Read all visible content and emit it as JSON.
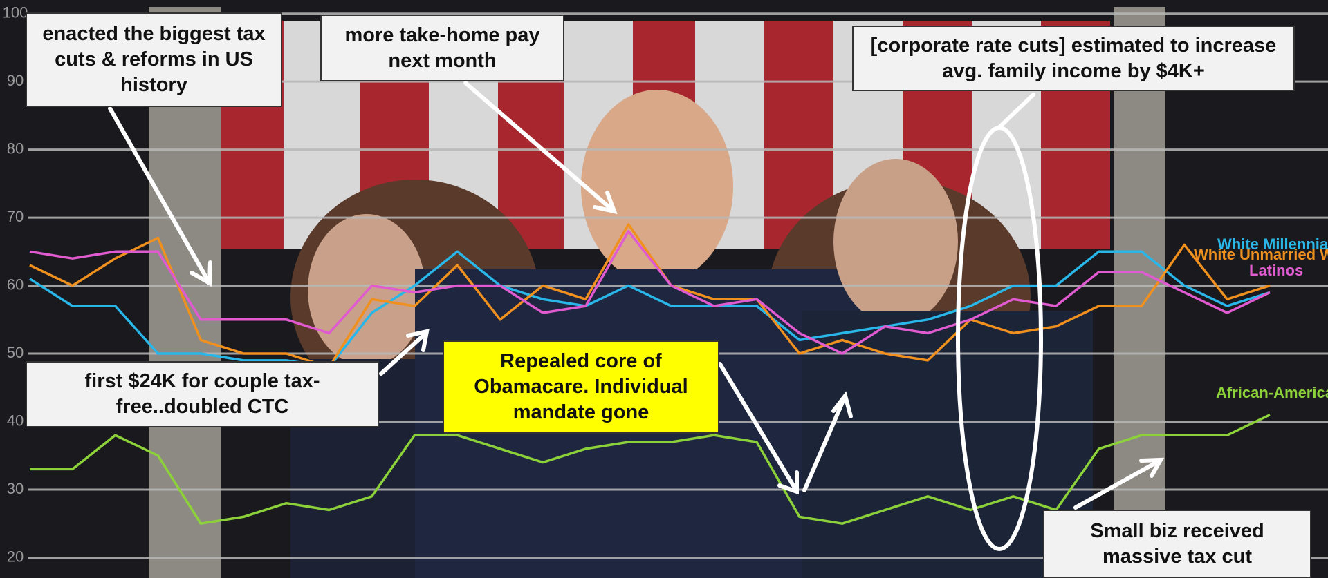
{
  "chart_data": {
    "type": "line",
    "ylim": [
      17,
      102
    ],
    "yticks": [
      20,
      30,
      40,
      50,
      60,
      70,
      80,
      90,
      100
    ],
    "grid": true,
    "series": [
      {
        "name": "White Millennials",
        "color": "#29b6e8",
        "values": [
          61,
          57,
          57,
          50,
          50,
          49,
          49,
          48,
          56,
          60,
          65,
          60,
          58,
          57,
          60,
          57,
          57,
          57,
          52,
          53,
          54,
          55,
          57,
          60,
          60,
          65,
          65,
          60,
          57,
          59
        ]
      },
      {
        "name": "White Unmarried Wom",
        "color": "#f0901e",
        "values": [
          63,
          60,
          64,
          67,
          52,
          50,
          50,
          48,
          58,
          57,
          63,
          55,
          60,
          58,
          69,
          60,
          58,
          58,
          50,
          52,
          50,
          49,
          55,
          53,
          54,
          57,
          57,
          66,
          58,
          60
        ]
      },
      {
        "name": "Latinos",
        "color": "#e05ad0",
        "values": [
          65,
          64,
          65,
          65,
          55,
          55,
          55,
          53,
          60,
          59,
          60,
          60,
          56,
          57,
          68,
          60,
          57,
          58,
          53,
          50,
          54,
          53,
          55,
          58,
          57,
          62,
          62,
          59,
          56,
          59
        ]
      },
      {
        "name": "African-Americans",
        "color": "#8cd13a",
        "values": [
          33,
          33,
          38,
          35,
          25,
          26,
          28,
          27,
          29,
          38,
          38,
          36,
          34,
          36,
          37,
          37,
          38,
          37,
          26,
          25,
          27,
          29,
          27,
          29,
          27,
          36,
          38,
          38,
          38,
          41
        ]
      }
    ],
    "annotations": [
      "enacted the biggest tax cuts & reforms in US history",
      "more take-home pay next month",
      "[corporate rate cuts] estimated to increase avg. family income by $4K+",
      "first $24K for couple tax-free..doubled CTC",
      "Repealed core of Obamacare. Individual mandate gone",
      "Small biz received massive tax cut"
    ]
  }
}
